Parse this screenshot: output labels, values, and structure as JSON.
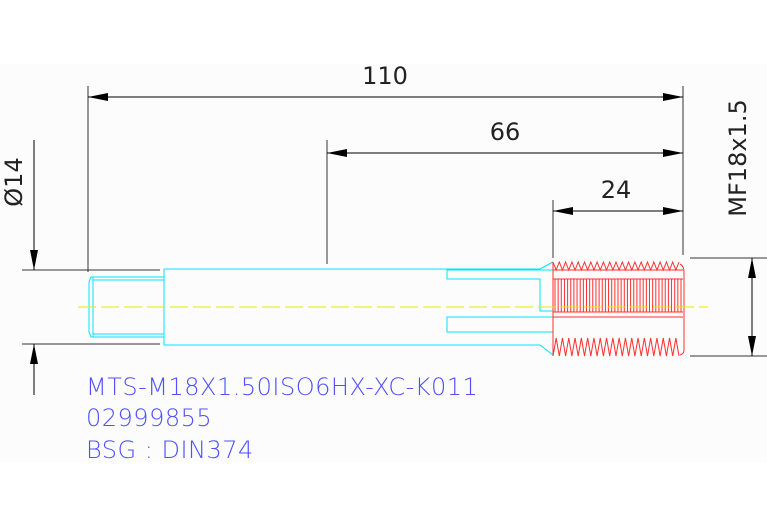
{
  "dimensions": {
    "overall_length": "110",
    "shank_to_end": "66",
    "thread_length": "24",
    "shank_diameter": "Ø14",
    "thread_spec": "MF18x1.5"
  },
  "labels": {
    "part_code": "MTS-M18X1.50ISO6HX-XC-K011",
    "part_number": "02999855",
    "standard": "BSG : DIN374"
  },
  "colors": {
    "dimension": "#000000",
    "shank": "#00e5ff",
    "thread": "#ff3030",
    "centerline": "#e8e800",
    "label_text": "#5050ff"
  }
}
